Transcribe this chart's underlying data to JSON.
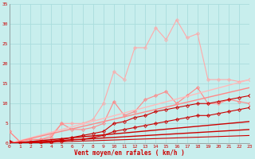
{
  "bg_color": "#c8eeed",
  "grid_color": "#aadddd",
  "text_color": "#cc0000",
  "xlabel": "Vent moyen/en rafales ( km/h )",
  "xlim": [
    0,
    23
  ],
  "ylim": [
    0,
    35
  ],
  "xticks": [
    0,
    1,
    2,
    3,
    4,
    5,
    6,
    7,
    8,
    9,
    10,
    11,
    12,
    13,
    14,
    15,
    16,
    17,
    18,
    19,
    20,
    21,
    22,
    23
  ],
  "yticks": [
    0,
    5,
    10,
    15,
    20,
    25,
    30,
    35
  ],
  "series": [
    {
      "x": [
        0,
        1,
        2,
        3,
        4,
        5,
        6,
        7,
        8,
        9,
        10,
        11,
        12,
        13,
        14,
        15,
        16,
        17,
        18,
        19,
        20,
        21,
        22,
        23
      ],
      "y": [
        3,
        0.5,
        1,
        1,
        2,
        5,
        5,
        5,
        6,
        10,
        18,
        16,
        24,
        24,
        29,
        26,
        31,
        26.5,
        27.5,
        16,
        16,
        16,
        15.5,
        16
      ],
      "color": "#ffaaaa",
      "marker": "D",
      "markersize": 2,
      "linewidth": 0.8,
      "linestyle": "-"
    },
    {
      "x": [
        0,
        1,
        2,
        3,
        4,
        5,
        6,
        7,
        8,
        9,
        10,
        11,
        12,
        13,
        14,
        15,
        16,
        17,
        18,
        19,
        20,
        21,
        22,
        23
      ],
      "y": [
        3,
        0.5,
        1,
        1,
        1.5,
        5,
        3.5,
        3.5,
        4,
        5,
        10.5,
        7,
        8,
        11,
        12,
        13,
        10,
        12,
        14,
        10,
        10,
        11,
        10.5,
        10
      ],
      "color": "#ff8888",
      "marker": "D",
      "markersize": 2,
      "linewidth": 0.8,
      "linestyle": "-"
    },
    {
      "x": [
        0,
        1,
        2,
        3,
        4,
        5,
        6,
        7,
        8,
        9,
        10,
        11,
        12,
        13,
        14,
        15,
        16,
        17,
        18,
        19,
        20,
        21,
        22,
        23
      ],
      "y": [
        0.5,
        0.2,
        0.2,
        0.3,
        0.5,
        1,
        1.5,
        2,
        2.5,
        3,
        5,
        5.5,
        6.5,
        7,
        8,
        8.5,
        9,
        9.5,
        10,
        10,
        10.5,
        11,
        11.5,
        12
      ],
      "color": "#cc0000",
      "marker": "D",
      "markersize": 2,
      "linewidth": 0.8,
      "linestyle": "-"
    },
    {
      "x": [
        0,
        1,
        2,
        3,
        4,
        5,
        6,
        7,
        8,
        9,
        10,
        11,
        12,
        13,
        14,
        15,
        16,
        17,
        18,
        19,
        20,
        21,
        22,
        23
      ],
      "y": [
        0.5,
        0.2,
        0.2,
        0.2,
        0.3,
        0.5,
        1,
        1,
        1.5,
        2,
        3,
        3.5,
        4,
        4.5,
        5,
        5.5,
        6,
        6.5,
        7,
        7,
        7.5,
        8,
        8.5,
        9
      ],
      "color": "#cc0000",
      "marker": "D",
      "markersize": 2,
      "linewidth": 0.8,
      "linestyle": "-"
    },
    {
      "x": [
        0,
        23
      ],
      "y": [
        0,
        16
      ],
      "color": "#ffbbbb",
      "marker": null,
      "markersize": 0,
      "linewidth": 1.0,
      "linestyle": "-"
    },
    {
      "x": [
        0,
        23
      ],
      "y": [
        0,
        14
      ],
      "color": "#ff8888",
      "marker": null,
      "markersize": 0,
      "linewidth": 1.0,
      "linestyle": "-"
    },
    {
      "x": [
        0,
        23
      ],
      "y": [
        0,
        5.5
      ],
      "color": "#cc0000",
      "marker": null,
      "markersize": 0,
      "linewidth": 1.0,
      "linestyle": "-"
    },
    {
      "x": [
        0,
        23
      ],
      "y": [
        0,
        3.5
      ],
      "color": "#cc0000",
      "marker": null,
      "markersize": 0,
      "linewidth": 1.0,
      "linestyle": "-"
    },
    {
      "x": [
        0,
        23
      ],
      "y": [
        0,
        2.0
      ],
      "color": "#cc0000",
      "marker": null,
      "markersize": 0,
      "linewidth": 0.8,
      "linestyle": "-"
    }
  ]
}
